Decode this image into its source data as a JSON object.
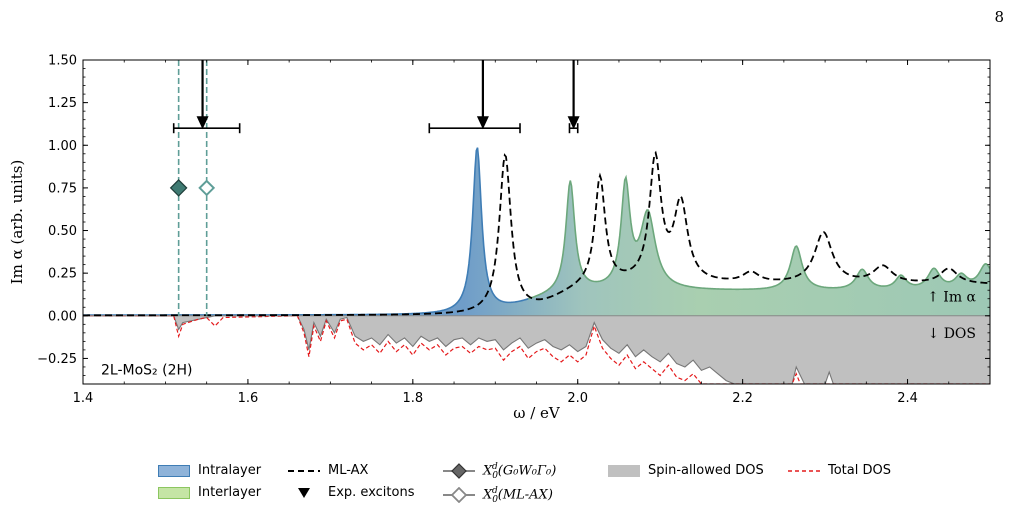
{
  "page_number": "8",
  "chart_data": {
    "type": "area",
    "system_label": "2L-MoS₂ (2H)",
    "xlabel": "ω / eV",
    "ylabel": "Im α (arb. units)",
    "xlim": [
      1.4,
      2.5
    ],
    "ylim": [
      -0.4,
      1.5
    ],
    "xticks": [
      1.4,
      1.6,
      1.8,
      2.0,
      2.2,
      2.4
    ],
    "xtick_labels": [
      "1.4",
      "1.6",
      "1.8",
      "2.0",
      "2.2",
      "2.4"
    ],
    "yticks": [
      -0.25,
      0.0,
      0.25,
      0.5,
      0.75,
      1.0,
      1.25,
      1.5
    ],
    "ytick_labels": [
      "−0.25",
      "0.00",
      "0.25",
      "0.50",
      "0.75",
      "1.00",
      "1.25",
      "1.50"
    ],
    "annotations": {
      "im_alpha": "↑ Im α",
      "dos": "↓ DOS"
    },
    "im_alpha_intralayer": {
      "name": "Intralayer",
      "color": "#3f7db5",
      "baseline": 0.004,
      "peaks": [
        [
          1.878,
          0.972,
          0.0065
        ]
      ]
    },
    "im_alpha_interlayer": {
      "name": "Interlayer",
      "color": "#6ca77c",
      "peaks": [
        [
          1.991,
          0.65,
          0.0065
        ],
        [
          2.058,
          0.6,
          0.0065
        ],
        [
          2.085,
          0.44,
          0.011
        ],
        [
          2.265,
          0.26,
          0.0085
        ],
        [
          2.345,
          0.12,
          0.009
        ],
        [
          2.392,
          0.08,
          0.008
        ],
        [
          2.432,
          0.12,
          0.009
        ],
        [
          2.465,
          0.08,
          0.009
        ],
        [
          2.495,
          0.15,
          0.01
        ]
      ],
      "background": 0.14
    },
    "ml_ax": {
      "name": "ML-AX",
      "color": "#000000",
      "peaks": [
        [
          1.912,
          0.93,
          0.0085
        ],
        [
          2.027,
          0.63,
          0.0075
        ],
        [
          2.094,
          0.72,
          0.0085
        ],
        [
          2.125,
          0.46,
          0.01
        ],
        [
          2.21,
          0.06,
          0.012
        ],
        [
          2.298,
          0.3,
          0.013
        ],
        [
          2.37,
          0.1,
          0.014
        ],
        [
          2.45,
          0.09,
          0.013
        ]
      ],
      "background": 0.18
    },
    "spin_allowed_dos": {
      "name": "Spin-allowed DOS",
      "color": "#c0c0c0",
      "points": [
        [
          1.4,
          0.0
        ],
        [
          1.51,
          0.0
        ],
        [
          1.516,
          -0.08
        ],
        [
          1.521,
          -0.04
        ],
        [
          1.56,
          0.0
        ],
        [
          1.66,
          0.0
        ],
        [
          1.668,
          -0.08
        ],
        [
          1.674,
          -0.2
        ],
        [
          1.68,
          -0.04
        ],
        [
          1.688,
          -0.12
        ],
        [
          1.695,
          -0.02
        ],
        [
          1.705,
          -0.1
        ],
        [
          1.712,
          -0.02
        ],
        [
          1.72,
          -0.01
        ],
        [
          1.73,
          -0.12
        ],
        [
          1.74,
          -0.15
        ],
        [
          1.75,
          -0.13
        ],
        [
          1.76,
          -0.17
        ],
        [
          1.77,
          -0.11
        ],
        [
          1.78,
          -0.16
        ],
        [
          1.79,
          -0.13
        ],
        [
          1.8,
          -0.18
        ],
        [
          1.81,
          -0.12
        ],
        [
          1.82,
          -0.15
        ],
        [
          1.83,
          -0.13
        ],
        [
          1.84,
          -0.18
        ],
        [
          1.85,
          -0.14
        ],
        [
          1.86,
          -0.13
        ],
        [
          1.87,
          -0.17
        ],
        [
          1.88,
          -0.13
        ],
        [
          1.89,
          -0.15
        ],
        [
          1.9,
          -0.14
        ],
        [
          1.91,
          -0.2
        ],
        [
          1.92,
          -0.16
        ],
        [
          1.93,
          -0.13
        ],
        [
          1.94,
          -0.19
        ],
        [
          1.95,
          -0.16
        ],
        [
          1.96,
          -0.14
        ],
        [
          1.97,
          -0.18
        ],
        [
          1.98,
          -0.2
        ],
        [
          1.99,
          -0.17
        ],
        [
          2.0,
          -0.21
        ],
        [
          2.01,
          -0.18
        ],
        [
          2.02,
          -0.04
        ],
        [
          2.03,
          -0.14
        ],
        [
          2.04,
          -0.19
        ],
        [
          2.05,
          -0.22
        ],
        [
          2.06,
          -0.17
        ],
        [
          2.07,
          -0.24
        ],
        [
          2.08,
          -0.2
        ],
        [
          2.09,
          -0.24
        ],
        [
          2.1,
          -0.27
        ],
        [
          2.11,
          -0.22
        ],
        [
          2.12,
          -0.28
        ],
        [
          2.13,
          -0.3
        ],
        [
          2.14,
          -0.26
        ],
        [
          2.15,
          -0.32
        ],
        [
          2.16,
          -0.3
        ],
        [
          2.17,
          -0.34
        ],
        [
          2.18,
          -0.38
        ],
        [
          2.19,
          -0.4
        ],
        [
          2.2,
          -0.4
        ],
        [
          2.26,
          -0.4
        ],
        [
          2.265,
          -0.3
        ],
        [
          2.275,
          -0.4
        ],
        [
          2.3,
          -0.4
        ],
        [
          2.305,
          -0.33
        ],
        [
          2.31,
          -0.4
        ],
        [
          2.5,
          -0.4
        ]
      ]
    },
    "total_dos": {
      "name": "Total DOS",
      "color": "#e41a1c",
      "points": [
        [
          1.4,
          0.0
        ],
        [
          1.51,
          0.0
        ],
        [
          1.516,
          -0.12
        ],
        [
          1.521,
          -0.05
        ],
        [
          1.54,
          -0.02
        ],
        [
          1.55,
          -0.01
        ],
        [
          1.56,
          -0.06
        ],
        [
          1.57,
          -0.01
        ],
        [
          1.66,
          0.0
        ],
        [
          1.668,
          -0.1
        ],
        [
          1.674,
          -0.24
        ],
        [
          1.68,
          -0.06
        ],
        [
          1.688,
          -0.15
        ],
        [
          1.695,
          -0.03
        ],
        [
          1.705,
          -0.13
        ],
        [
          1.712,
          -0.03
        ],
        [
          1.72,
          -0.02
        ],
        [
          1.73,
          -0.16
        ],
        [
          1.74,
          -0.2
        ],
        [
          1.75,
          -0.17
        ],
        [
          1.76,
          -0.22
        ],
        [
          1.77,
          -0.15
        ],
        [
          1.78,
          -0.21
        ],
        [
          1.79,
          -0.17
        ],
        [
          1.8,
          -0.23
        ],
        [
          1.81,
          -0.16
        ],
        [
          1.82,
          -0.2
        ],
        [
          1.83,
          -0.17
        ],
        [
          1.84,
          -0.23
        ],
        [
          1.85,
          -0.19
        ],
        [
          1.86,
          -0.18
        ],
        [
          1.87,
          -0.22
        ],
        [
          1.88,
          -0.18
        ],
        [
          1.89,
          -0.2
        ],
        [
          1.9,
          -0.19
        ],
        [
          1.91,
          -0.26
        ],
        [
          1.92,
          -0.21
        ],
        [
          1.93,
          -0.18
        ],
        [
          1.94,
          -0.25
        ],
        [
          1.95,
          -0.21
        ],
        [
          1.96,
          -0.19
        ],
        [
          1.97,
          -0.24
        ],
        [
          1.98,
          -0.27
        ],
        [
          1.99,
          -0.23
        ],
        [
          2.0,
          -0.27
        ],
        [
          2.01,
          -0.23
        ],
        [
          2.02,
          -0.06
        ],
        [
          2.03,
          -0.19
        ],
        [
          2.04,
          -0.25
        ],
        [
          2.05,
          -0.29
        ],
        [
          2.06,
          -0.23
        ],
        [
          2.07,
          -0.31
        ],
        [
          2.08,
          -0.27
        ],
        [
          2.09,
          -0.31
        ],
        [
          2.1,
          -0.35
        ],
        [
          2.11,
          -0.29
        ],
        [
          2.12,
          -0.36
        ],
        [
          2.13,
          -0.38
        ],
        [
          2.14,
          -0.34
        ],
        [
          2.15,
          -0.4
        ],
        [
          2.2,
          -0.4
        ],
        [
          2.26,
          -0.4
        ],
        [
          2.265,
          -0.34
        ],
        [
          2.27,
          -0.4
        ],
        [
          2.5,
          -0.4
        ]
      ]
    },
    "exp_excitons": {
      "name": "Exp. excitons",
      "arrows": [
        1.545,
        1.885,
        1.995
      ],
      "error_bars": [
        [
          1.51,
          1.59
        ],
        [
          1.82,
          1.93
        ],
        [
          1.99,
          2.0
        ]
      ],
      "error_bar_y": 1.1
    },
    "x0_g0w0": {
      "name": "X₀ᵈ(G₀W₀Γ₀)",
      "x": 1.516,
      "y": 0.75,
      "color": "#3f7a72"
    },
    "x0_mlax": {
      "name": "X₀ᵈ(ML-AX)",
      "x": 1.55,
      "y": 0.75,
      "color": "#5f9e98"
    },
    "legend": {
      "intralayer": "Intralayer",
      "interlayer": "Interlayer",
      "ml_ax": "ML-AX",
      "exp_excitons": "Exp. excitons",
      "x0_g0w0_base": "X",
      "x0_g0w0_sub": "0",
      "x0_g0w0_sup": "d",
      "x0_g0w0_arg": "(G₀W₀Γ₀)",
      "x0_mlax_base": "X",
      "x0_mlax_sub": "0",
      "x0_mlax_sup": "d",
      "x0_mlax_arg": "(ML-AX)",
      "spin_dos": "Spin-allowed DOS",
      "total_dos": "Total DOS"
    }
  }
}
